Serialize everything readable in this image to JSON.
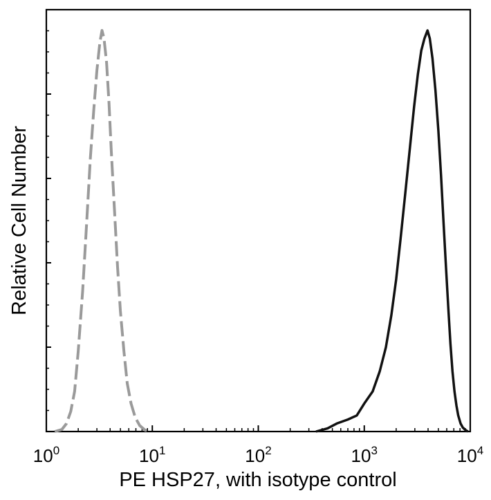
{
  "chart_data": {
    "type": "line",
    "title": "",
    "xlabel": "PE HSP27, with isotype control",
    "ylabel": "Relative Cell Number",
    "x_scale": "log",
    "xlim": [
      1,
      10000
    ],
    "ylim": [
      0,
      1
    ],
    "grid": false,
    "x_ticks": [
      {
        "base": "10",
        "exp": "0",
        "value": 1
      },
      {
        "base": "10",
        "exp": "1",
        "value": 10
      },
      {
        "base": "10",
        "exp": "2",
        "value": 100
      },
      {
        "base": "10",
        "exp": "3",
        "value": 1000
      },
      {
        "base": "10",
        "exp": "4",
        "value": 10000
      }
    ],
    "series": [
      {
        "style": "dashed",
        "color": "#9a9a9a",
        "points": [
          [
            1.2,
            0.0
          ],
          [
            1.4,
            0.005
          ],
          [
            1.55,
            0.02
          ],
          [
            1.7,
            0.05
          ],
          [
            1.85,
            0.1
          ],
          [
            2.0,
            0.2
          ],
          [
            2.2,
            0.35
          ],
          [
            2.4,
            0.52
          ],
          [
            2.6,
            0.68
          ],
          [
            2.8,
            0.8
          ],
          [
            3.0,
            0.9
          ],
          [
            3.2,
            0.97
          ],
          [
            3.35,
            1.0
          ],
          [
            3.5,
            0.98
          ],
          [
            3.7,
            0.92
          ],
          [
            3.9,
            0.82
          ],
          [
            4.1,
            0.7
          ],
          [
            4.4,
            0.55
          ],
          [
            4.7,
            0.41
          ],
          [
            5.0,
            0.3
          ],
          [
            5.4,
            0.2
          ],
          [
            5.8,
            0.12
          ],
          [
            6.3,
            0.07
          ],
          [
            6.9,
            0.035
          ],
          [
            7.6,
            0.015
          ],
          [
            8.5,
            0.004
          ],
          [
            9.5,
            0.0
          ]
        ]
      },
      {
        "style": "solid",
        "color": "#111111",
        "points": [
          [
            350,
            0.0
          ],
          [
            450,
            0.008
          ],
          [
            550,
            0.02
          ],
          [
            700,
            0.03
          ],
          [
            850,
            0.04
          ],
          [
            1000,
            0.07
          ],
          [
            1200,
            0.1
          ],
          [
            1400,
            0.15
          ],
          [
            1600,
            0.21
          ],
          [
            1800,
            0.29
          ],
          [
            2000,
            0.38
          ],
          [
            2200,
            0.48
          ],
          [
            2450,
            0.6
          ],
          [
            2700,
            0.71
          ],
          [
            2950,
            0.81
          ],
          [
            3200,
            0.89
          ],
          [
            3450,
            0.95
          ],
          [
            3700,
            0.98
          ],
          [
            3950,
            1.0
          ],
          [
            4150,
            0.98
          ],
          [
            4400,
            0.93
          ],
          [
            4700,
            0.85
          ],
          [
            5000,
            0.75
          ],
          [
            5300,
            0.64
          ],
          [
            5600,
            0.52
          ],
          [
            5900,
            0.41
          ],
          [
            6200,
            0.31
          ],
          [
            6500,
            0.22
          ],
          [
            6800,
            0.15
          ],
          [
            7100,
            0.1
          ],
          [
            7400,
            0.065
          ],
          [
            7700,
            0.04
          ],
          [
            8100,
            0.02
          ],
          [
            8500,
            0.01
          ],
          [
            9000,
            0.004
          ],
          [
            9500,
            0.0
          ]
        ]
      }
    ]
  }
}
